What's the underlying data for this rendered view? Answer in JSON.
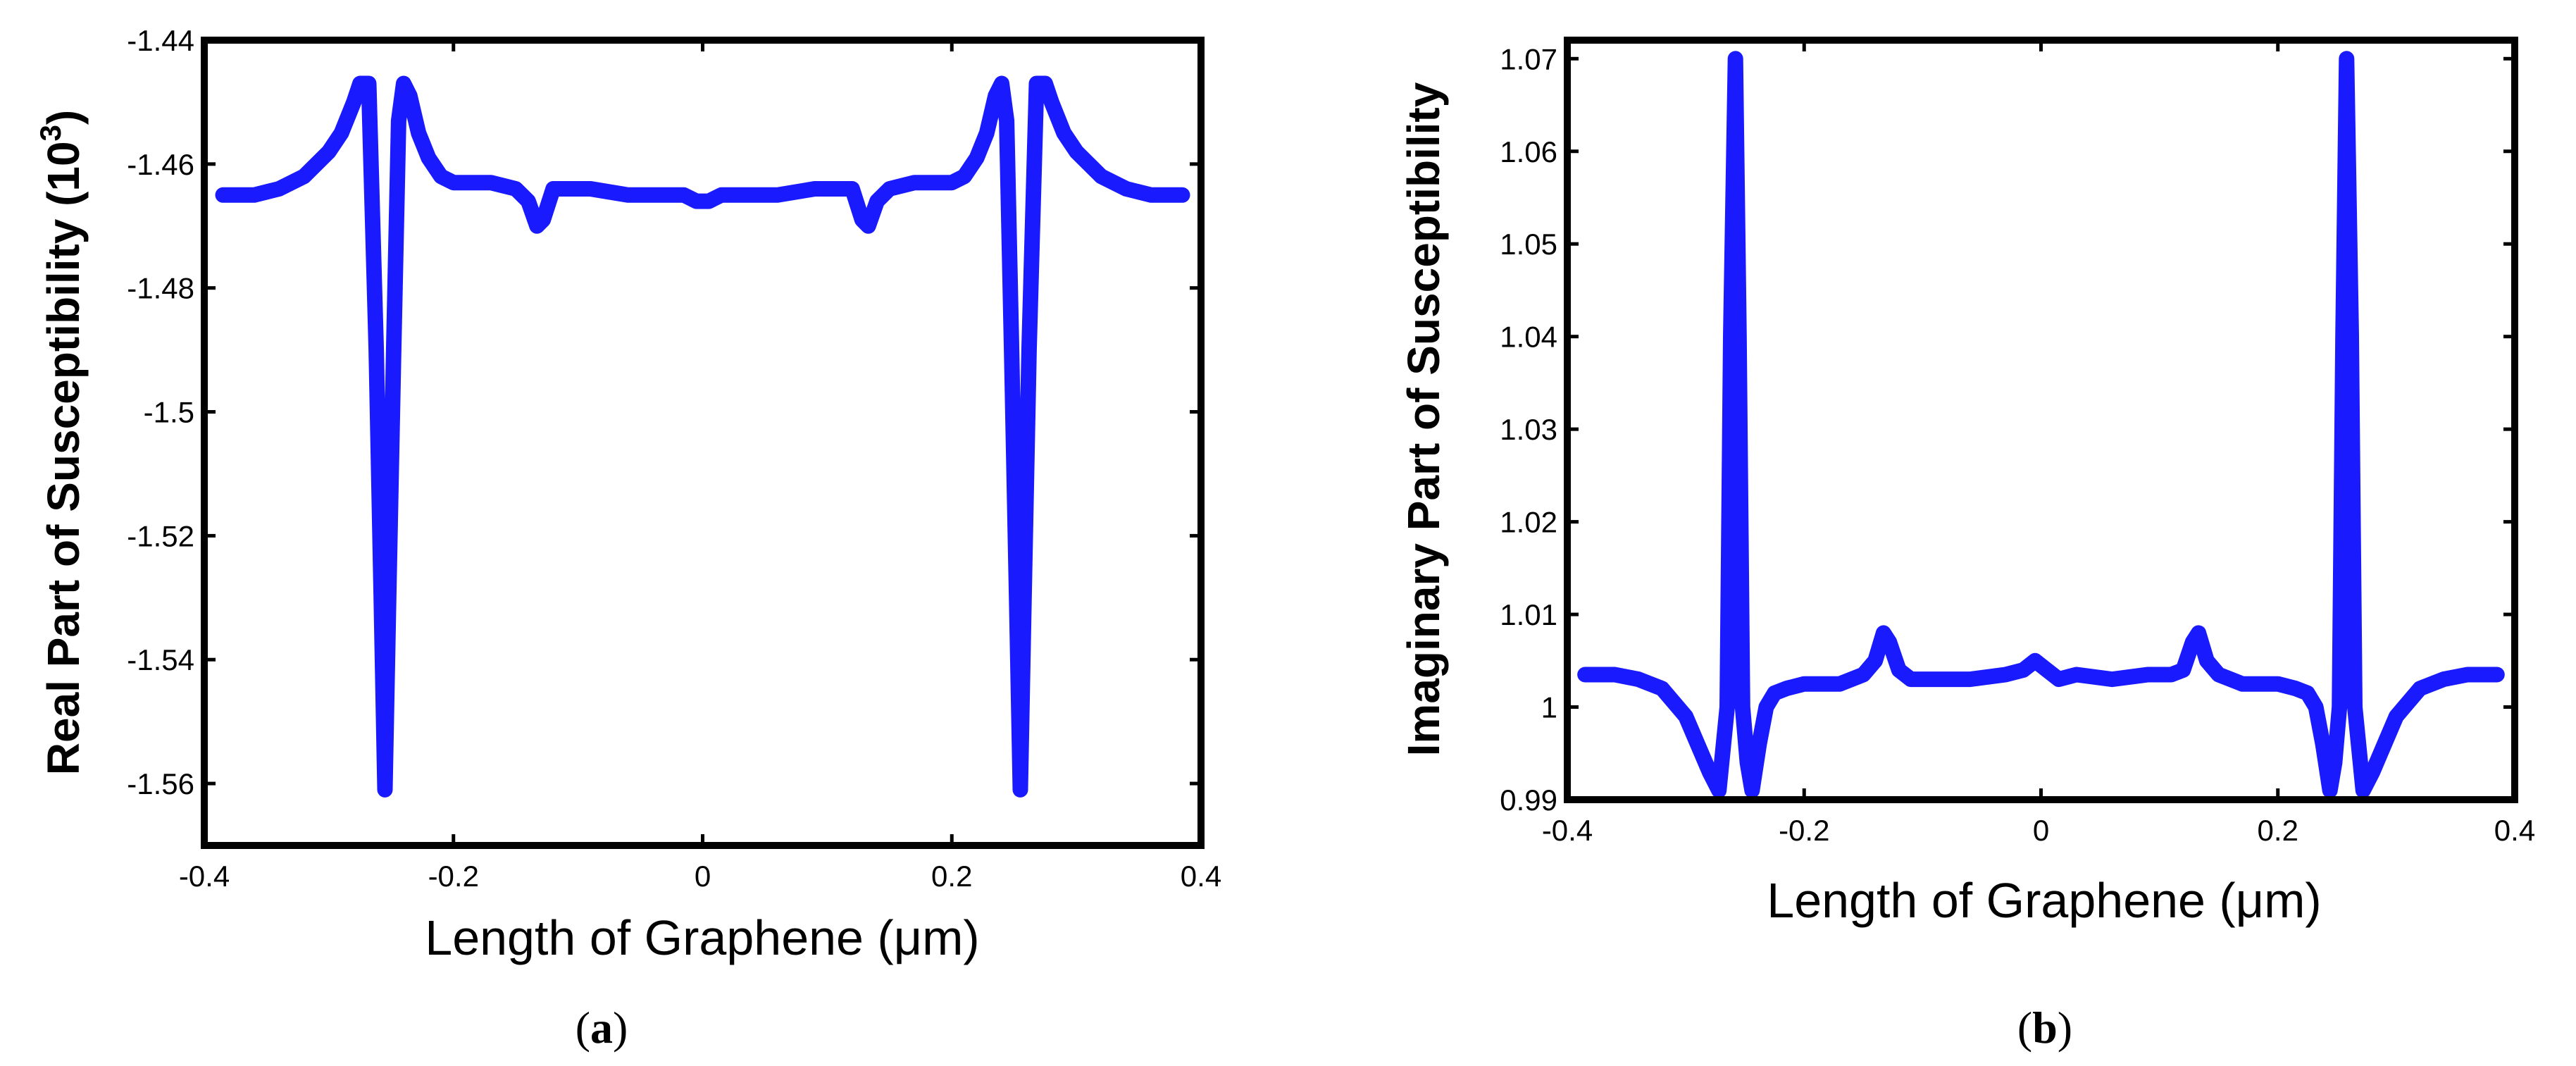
{
  "chart_data": [
    {
      "id": "a",
      "type": "line",
      "xlabel_prefix": "Length of Graphene (",
      "xlabel_unit": "μm",
      "xlabel_suffix": ")",
      "ylabel_text": "Real Part of Susceptibility (10",
      "ylabel_sup": "3",
      "ylabel_close": ")",
      "caption_letter": "a",
      "xlim": [
        -0.4,
        0.4
      ],
      "ylim": [
        -1.57,
        -1.44
      ],
      "xticks": [
        -0.4,
        -0.2,
        0,
        0.2,
        0.4
      ],
      "xtick_labels": [
        "-0.4",
        "-0.2",
        "0",
        "0.2",
        "0.4"
      ],
      "yticks": [
        -1.56,
        -1.54,
        -1.52,
        -1.5,
        -1.48,
        -1.46,
        -1.44
      ],
      "ytick_labels": [
        "-1.56",
        "-1.54",
        "-1.52",
        "-1.5",
        "-1.48",
        "-1.46",
        "-1.44"
      ],
      "series": [
        {
          "name": "real",
          "color": "#1a1aff",
          "x": [
            -0.385,
            -0.36,
            -0.34,
            -0.32,
            -0.3,
            -0.29,
            -0.28,
            -0.275,
            -0.268,
            -0.262,
            -0.258,
            -0.255,
            -0.252,
            -0.248,
            -0.244,
            -0.24,
            -0.235,
            -0.228,
            -0.22,
            -0.21,
            -0.2,
            -0.19,
            -0.17,
            -0.15,
            -0.14,
            -0.133,
            -0.128,
            -0.12,
            -0.11,
            -0.09,
            -0.06,
            -0.03,
            -0.015,
            -0.005,
            0,
            0.005,
            0.015,
            0.03,
            0.06,
            0.09,
            0.11,
            0.12,
            0.128,
            0.133,
            0.14,
            0.15,
            0.17,
            0.19,
            0.2,
            0.21,
            0.22,
            0.228,
            0.235,
            0.24,
            0.244,
            0.248,
            0.252,
            0.255,
            0.258,
            0.262,
            0.268,
            0.275,
            0.28,
            0.29,
            0.3,
            0.32,
            0.34,
            0.36,
            0.385
          ],
          "y": [
            -1.465,
            -1.465,
            -1.464,
            -1.462,
            -1.458,
            -1.455,
            -1.45,
            -1.447,
            -1.447,
            -1.49,
            -1.53,
            -1.561,
            -1.53,
            -1.49,
            -1.453,
            -1.447,
            -1.449,
            -1.455,
            -1.459,
            -1.462,
            -1.463,
            -1.463,
            -1.463,
            -1.464,
            -1.466,
            -1.47,
            -1.469,
            -1.464,
            -1.464,
            -1.464,
            -1.465,
            -1.465,
            -1.465,
            -1.466,
            -1.466,
            -1.466,
            -1.465,
            -1.465,
            -1.465,
            -1.464,
            -1.464,
            -1.464,
            -1.469,
            -1.47,
            -1.466,
            -1.464,
            -1.463,
            -1.463,
            -1.463,
            -1.462,
            -1.459,
            -1.455,
            -1.449,
            -1.447,
            -1.453,
            -1.49,
            -1.53,
            -1.561,
            -1.53,
            -1.49,
            -1.447,
            -1.447,
            -1.45,
            -1.455,
            -1.458,
            -1.462,
            -1.464,
            -1.465,
            -1.465
          ]
        }
      ]
    },
    {
      "id": "b",
      "type": "line",
      "xlabel_prefix": "Length of Graphene (",
      "xlabel_unit": "μm",
      "xlabel_suffix": ")",
      "ylabel_text": "Imaginary Part of Susceptibility",
      "caption_letter": "b",
      "xlim": [
        -0.4,
        0.4
      ],
      "ylim": [
        0.99,
        1.072
      ],
      "xticks": [
        -0.4,
        -0.2,
        0,
        0.2,
        0.4
      ],
      "xtick_labels": [
        "-0.4",
        "-0.2",
        "0",
        "0.2",
        "0.4"
      ],
      "yticks": [
        0.99,
        1.0,
        1.01,
        1.02,
        1.03,
        1.04,
        1.05,
        1.06,
        1.07
      ],
      "ytick_labels": [
        "0.99",
        "1",
        "1.01",
        "1.02",
        "1.03",
        "1.04",
        "1.05",
        "1.06",
        "1.07"
      ],
      "series": [
        {
          "name": "imaginary",
          "color": "#1a1aff",
          "x": [
            -0.385,
            -0.36,
            -0.34,
            -0.32,
            -0.3,
            -0.29,
            -0.28,
            -0.272,
            -0.265,
            -0.262,
            -0.258,
            -0.255,
            -0.252,
            -0.248,
            -0.244,
            -0.238,
            -0.232,
            -0.225,
            -0.215,
            -0.2,
            -0.19,
            -0.17,
            -0.15,
            -0.14,
            -0.133,
            -0.128,
            -0.12,
            -0.11,
            -0.09,
            -0.06,
            -0.03,
            -0.015,
            -0.005,
            0,
            0.005,
            0.015,
            0.03,
            0.06,
            0.09,
            0.11,
            0.12,
            0.128,
            0.133,
            0.14,
            0.15,
            0.17,
            0.19,
            0.2,
            0.215,
            0.225,
            0.232,
            0.238,
            0.244,
            0.248,
            0.252,
            0.255,
            0.258,
            0.262,
            0.265,
            0.272,
            0.28,
            0.29,
            0.3,
            0.32,
            0.34,
            0.36,
            0.385
          ],
          "y": [
            1.0035,
            1.0035,
            1.003,
            1.002,
            0.999,
            0.996,
            0.993,
            0.991,
            1.0,
            1.04,
            1.07,
            1.04,
            1.0,
            0.994,
            0.991,
            0.996,
            1.0,
            1.0015,
            1.002,
            1.0025,
            1.0025,
            1.0025,
            1.0035,
            1.005,
            1.008,
            1.007,
            1.004,
            1.003,
            1.003,
            1.003,
            1.0035,
            1.004,
            1.005,
            1.0045,
            1.004,
            1.003,
            1.0035,
            1.003,
            1.0035,
            1.0035,
            1.004,
            1.007,
            1.008,
            1.005,
            1.0035,
            1.0025,
            1.0025,
            1.0025,
            1.002,
            1.0015,
            1.0,
            0.996,
            0.991,
            0.994,
            1.0,
            1.04,
            1.07,
            1.04,
            1.0,
            0.991,
            0.993,
            0.996,
            0.999,
            1.002,
            1.003,
            1.0035,
            1.0035
          ]
        }
      ]
    }
  ]
}
